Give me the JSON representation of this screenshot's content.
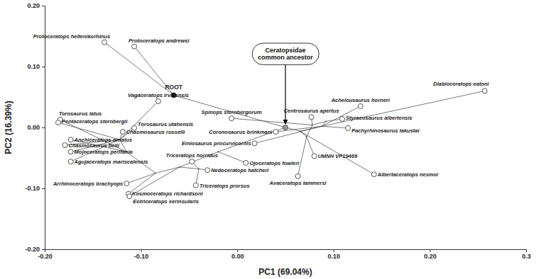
{
  "chart_data": {
    "type": "scatter",
    "x_label": "PC1 (69.04%)",
    "y_label": "PC2 (16.39%)",
    "xlim": [
      -0.2,
      0.3
    ],
    "ylim": [
      -0.2,
      0.2
    ],
    "xticks": [
      {
        "value": -0.2,
        "label": "-0.20"
      },
      {
        "value": -0.1,
        "label": "-0.10"
      },
      {
        "value": 0,
        "label": "0.00"
      },
      {
        "value": 0.1,
        "label": "0.10"
      },
      {
        "value": 0.2,
        "label": "0.20"
      },
      0.3
    ],
    "yticks": [
      {
        "value": -0.2,
        "label": "-0.20"
      },
      {
        "value": -0.1,
        "label": "-0.10"
      },
      {
        "value": 0,
        "label": "0.00"
      },
      {
        "value": 0.1,
        "label": "0.10"
      },
      {
        "value": 0.2,
        "label": "0.20"
      }
    ],
    "series": [
      {
        "labels": [
          "ROOT",
          null,
          "Protoceratops hellenikorhinus",
          "Protoceratops andrewsi",
          "Vagaceratops irvinensis",
          "Torosaurus latus",
          "Pentaceratops sternbergii",
          "Torosaurus utahensis",
          "Chasmosaurus russelli",
          "Anchiceratops ornatus",
          "Chasmosaurus belli",
          "Mojoceratops perifania",
          "Agujaceratops mariscalensis",
          "Arrhinoceratops brachyops",
          "Kosmoceratops richardsoni",
          "Eotriceratops xerinsularis",
          "Triceratops horridus",
          "Triceratops prorsus",
          "Nedoceratops hatcheri",
          "Ojoceratops fowleri",
          "Spinops sternbergorum",
          "Coronosaurus brinkmani",
          "Einiosaurus procurvicornis",
          "Centrosaurus apertus",
          "Achelousaurus horneri",
          "Styracosaurus albertensis",
          "Pachyrhinosaurus lakustai",
          "UMNH VP19469",
          "Avaceratops lammersi",
          "Albertaceratops nesmoi",
          "Diabloceratops eatoni",
          null,
          null,
          null,
          null,
          null,
          null,
          null,
          null,
          null,
          null,
          null
        ],
        "x": [
          -0.066,
          0.05,
          -0.138,
          -0.107,
          -0.082,
          -0.184,
          -0.186,
          -0.107,
          -0.119,
          -0.173,
          -0.179,
          -0.173,
          -0.173,
          -0.115,
          -0.113,
          -0.112,
          -0.047,
          -0.043,
          -0.031,
          0.009,
          -0.006,
          0.04,
          0.018,
          0.077,
          0.128,
          0.109,
          0.115,
          0.08,
          0.063,
          0.142,
          0.257,
          0.065,
          0.072,
          0.078,
          0.092,
          0.088,
          -0.02,
          -0.06,
          -0.04,
          -0.085,
          -0.115,
          -0.122
        ],
        "values": [
          0.053,
          0,
          0.14,
          0.133,
          0.043,
          0.013,
          0.008,
          -0.001,
          -0.007,
          -0.02,
          -0.029,
          -0.04,
          -0.056,
          -0.092,
          -0.109,
          -0.113,
          -0.056,
          -0.095,
          -0.07,
          -0.058,
          0.015,
          -0.007,
          -0.026,
          0.017,
          0.035,
          0.014,
          -0.001,
          -0.047,
          -0.08,
          -0.077,
          0.06,
          -0.006,
          -0.015,
          0.004,
          0.01,
          0.002,
          -0.04,
          -0.065,
          -0.068,
          -0.075,
          -0.04,
          -0.02
        ],
        "markers": [
          "circle",
          "circle",
          "circle-open",
          "circle-open",
          "circle-open",
          "circle-open",
          "circle-open",
          "circle-open",
          "circle-open",
          "circle-open",
          "circle-open",
          "circle-open",
          "circle-open",
          "circle-open",
          "circle-open",
          "circle-open",
          "circle-open",
          "circle-open",
          "circle-open",
          "circle-open",
          "circle-open",
          "circle-open",
          "circle-open",
          "circle-open",
          "circle-open",
          "circle-open",
          "circle-open",
          "circle-open",
          "circle-open",
          "circle-open",
          "circle-open",
          "point",
          "point",
          "point",
          "point",
          "point",
          "point",
          "point",
          "point",
          "point",
          "point",
          "point"
        ],
        "colors": [
          "#000000",
          "#9a9a9a",
          "#555555",
          "#555555",
          "#555555",
          "#555555",
          "#555555",
          "#555555",
          "#555555",
          "#555555",
          "#555555",
          "#555555",
          "#555555",
          "#555555",
          "#555555",
          "#555555",
          "#555555",
          "#555555",
          "#555555",
          "#555555",
          "#555555",
          "#555555",
          "#555555",
          "#555555",
          "#555555",
          "#555555",
          "#555555",
          "#555555",
          "#555555",
          "#555555",
          "#555555",
          "#555555",
          "#555555",
          "#555555",
          "#555555",
          "#555555",
          "#555555",
          "#555555",
          "#555555",
          "#555555",
          "#555555",
          "#555555"
        ]
      }
    ],
    "edges": [
      [
        0,
        2
      ],
      [
        0,
        3
      ],
      [
        0,
        1
      ],
      [
        1,
        31
      ],
      [
        31,
        30
      ],
      [
        31,
        29
      ],
      [
        31,
        32
      ],
      [
        32,
        28
      ],
      [
        32,
        27
      ],
      [
        32,
        33
      ],
      [
        33,
        20
      ],
      [
        33,
        23
      ],
      [
        33,
        34
      ],
      [
        34,
        25
      ],
      [
        34,
        35
      ],
      [
        35,
        21
      ],
      [
        35,
        22
      ],
      [
        35,
        24
      ],
      [
        35,
        26
      ],
      [
        1,
        36
      ],
      [
        36,
        19
      ],
      [
        36,
        37
      ],
      [
        37,
        38
      ],
      [
        37,
        15
      ],
      [
        37,
        39
      ],
      [
        38,
        16
      ],
      [
        38,
        17
      ],
      [
        38,
        18
      ],
      [
        39,
        13
      ],
      [
        39,
        14
      ],
      [
        39,
        40
      ],
      [
        40,
        9
      ],
      [
        40,
        5
      ],
      [
        40,
        41
      ],
      [
        41,
        7
      ],
      [
        41,
        4
      ],
      [
        41,
        6
      ],
      [
        41,
        8
      ],
      [
        41,
        10
      ],
      [
        41,
        11
      ],
      [
        41,
        12
      ]
    ],
    "annotations": [
      {
        "text": "Ceratopsidae common ancestor",
        "point": 1
      }
    ]
  }
}
